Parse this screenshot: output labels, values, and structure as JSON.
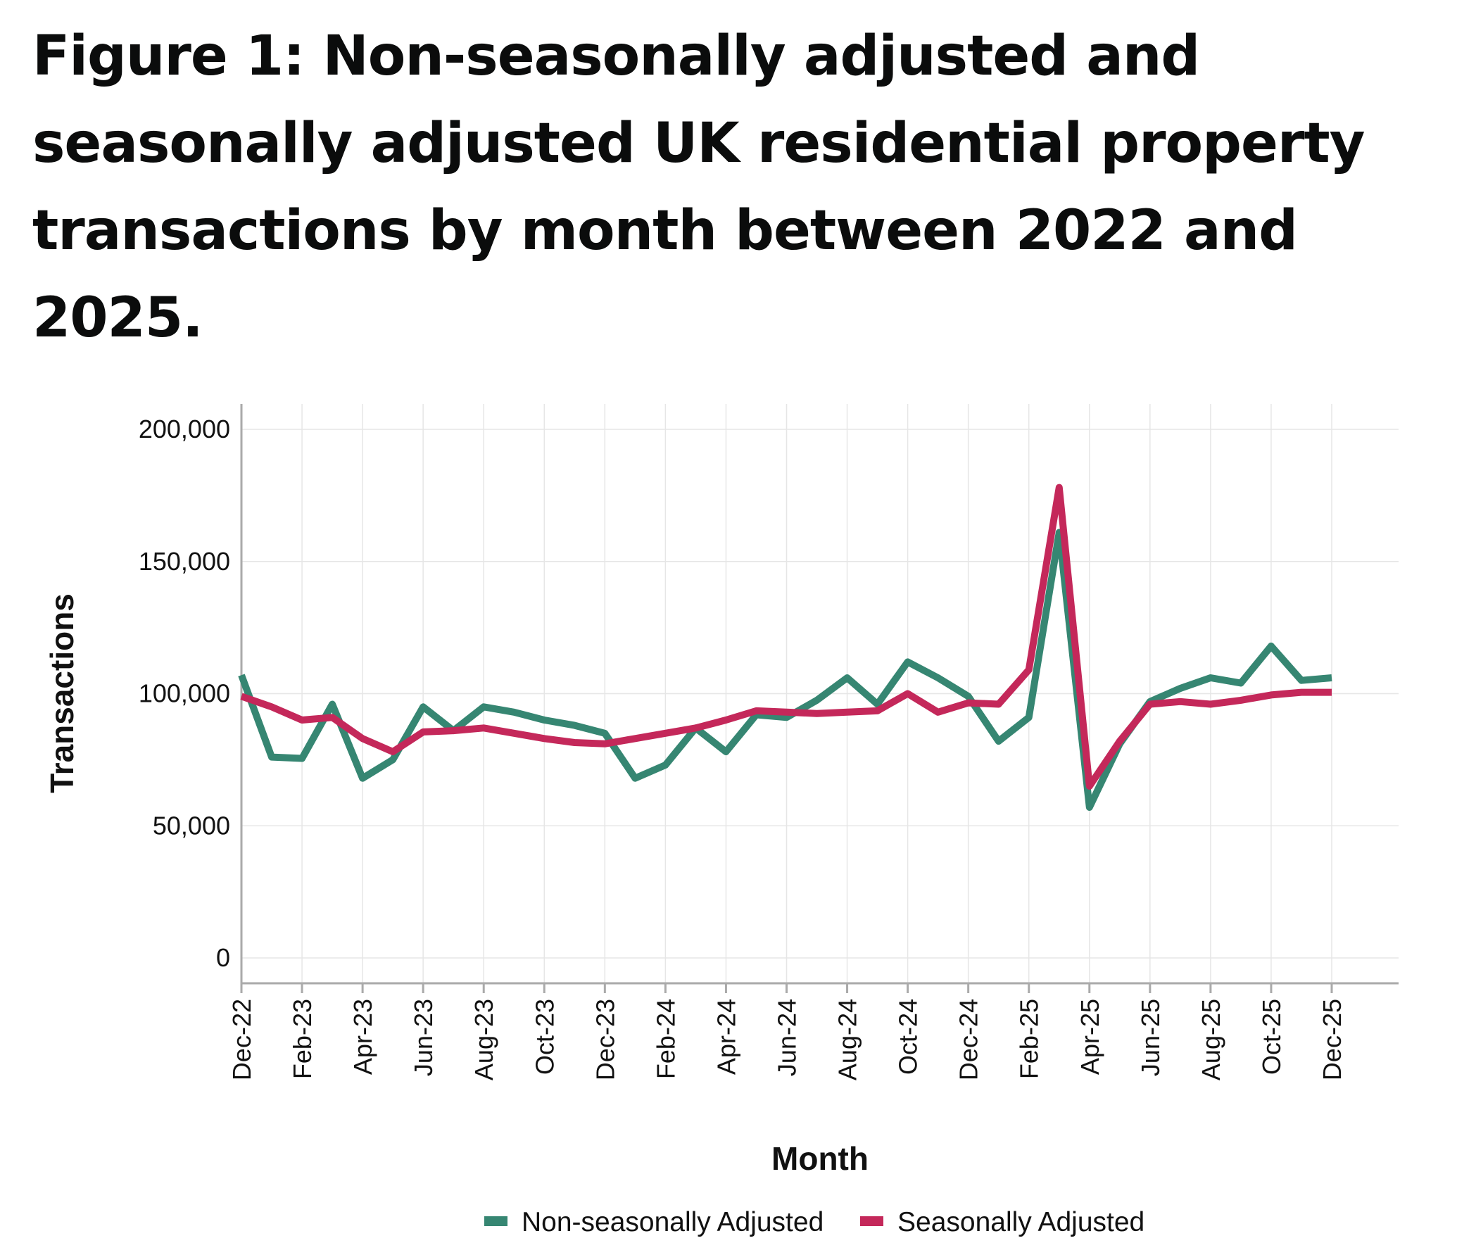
{
  "chart_data": {
    "type": "line",
    "title": "Figure 1: Non-seasonally adjusted and seasonally adjusted UK residential property transactions by month between 2022 and 2025.",
    "xlabel": "Month",
    "ylabel": "Transactions",
    "ylim": [
      0,
      200000
    ],
    "yticks": [
      "0",
      "50,000",
      "100,000",
      "150,000",
      "200,000"
    ],
    "ytick_values": [
      0,
      50000,
      100000,
      150000,
      200000
    ],
    "x": [
      "Dec-22",
      "Jan-23",
      "Feb-23",
      "Mar-23",
      "Apr-23",
      "May-23",
      "Jun-23",
      "Jul-23",
      "Aug-23",
      "Sep-23",
      "Oct-23",
      "Nov-23",
      "Dec-23",
      "Jan-24",
      "Feb-24",
      "Mar-24",
      "Apr-24",
      "May-24",
      "Jun-24",
      "Jul-24",
      "Aug-24",
      "Sep-24",
      "Oct-24",
      "Nov-24",
      "Dec-24",
      "Jan-25",
      "Feb-25",
      "Mar-25",
      "Apr-25",
      "May-25",
      "Jun-25",
      "Jul-25",
      "Aug-25",
      "Sep-25",
      "Oct-25",
      "Nov-25",
      "Dec-25"
    ],
    "xticks": [
      "Dec-22",
      "Feb-23",
      "Apr-23",
      "Jun-23",
      "Aug-23",
      "Oct-23",
      "Dec-23",
      "Feb-24",
      "Apr-24",
      "Jun-24",
      "Aug-24",
      "Oct-24",
      "Dec-24",
      "Feb-25",
      "Apr-25",
      "Jun-25",
      "Aug-25",
      "Oct-25",
      "Dec-25"
    ],
    "grid": true,
    "legend": "bottom",
    "series": [
      {
        "name": "Non-seasonally Adjusted",
        "color": "#368672",
        "values": [
          107000,
          76000,
          75500,
          96000,
          68000,
          75000,
          95000,
          86000,
          95000,
          93000,
          90000,
          88000,
          85000,
          68000,
          73000,
          87000,
          78000,
          92000,
          91000,
          97500,
          106000,
          96000,
          112000,
          106000,
          99000,
          82000,
          91000,
          161000,
          57000,
          81000,
          97000,
          102000,
          106000,
          104000,
          118000,
          105000,
          106000
        ]
      },
      {
        "name": "Seasonally Adjusted",
        "color": "#c4285a",
        "values": [
          99000,
          95000,
          90000,
          91000,
          83000,
          78000,
          85500,
          86000,
          87000,
          85000,
          83000,
          81500,
          81000,
          83000,
          85000,
          87000,
          90000,
          93500,
          93000,
          92500,
          93000,
          93500,
          100000,
          93000,
          96500,
          96000,
          109000,
          178000,
          65000,
          82000,
          96000,
          97000,
          96000,
          97500,
          99500,
          100500,
          100500
        ]
      }
    ]
  }
}
